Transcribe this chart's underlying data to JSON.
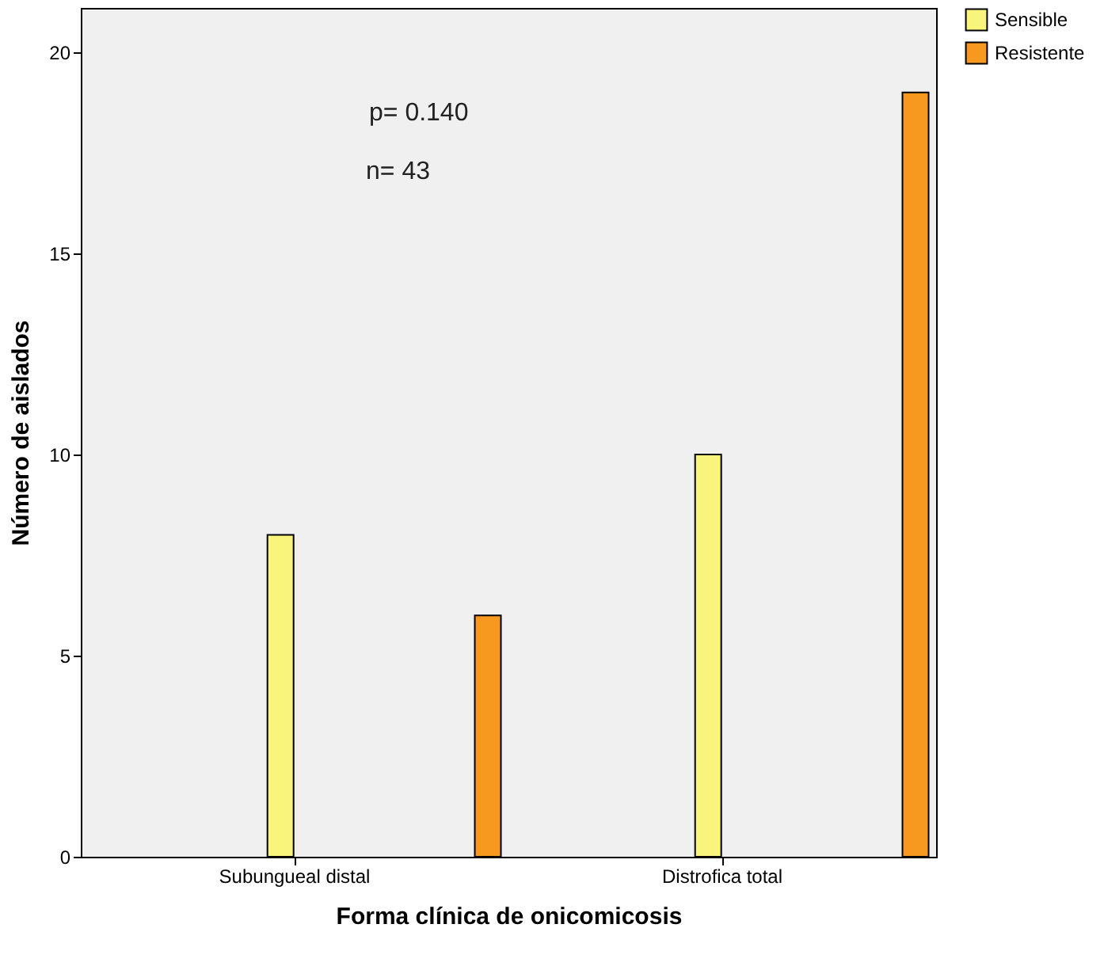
{
  "chart_data": {
    "type": "bar",
    "xlabel": "Forma clínica de onicomicosis",
    "ylabel": "Número de aislados",
    "categories": [
      "Subungueal distal",
      "Distrofica total"
    ],
    "series": [
      {
        "name": "Sensible",
        "color": "#f8f47c",
        "values": [
          8,
          10
        ]
      },
      {
        "name": "Resistente",
        "color": "#f7991f",
        "values": [
          6,
          19
        ]
      }
    ],
    "ylim": [
      0,
      21.1
    ],
    "yticks": [
      0,
      5,
      10,
      15,
      20
    ],
    "grid": false,
    "legend": "top right",
    "annotations": [
      "p= 0.140",
      "n= 43"
    ]
  }
}
